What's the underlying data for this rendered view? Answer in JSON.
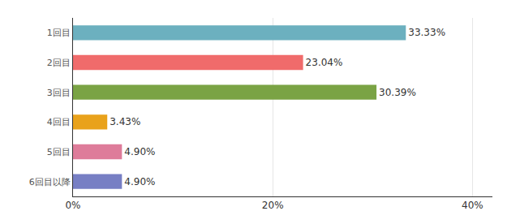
{
  "chart_data": {
    "type": "bar",
    "orientation": "horizontal",
    "categories": [
      "1回目",
      "2回目",
      "3回目",
      "4回目",
      "5回目",
      "6回目以降"
    ],
    "values": [
      33.33,
      23.04,
      30.39,
      3.43,
      4.9,
      4.9
    ],
    "value_labels": [
      "33.33%",
      "23.04%",
      "30.39%",
      "3.43%",
      "4.90%",
      "4.90%"
    ],
    "colors": [
      "#6cb0bf",
      "#f06b6b",
      "#7aa344",
      "#e9a21b",
      "#de7c9a",
      "#777fc4"
    ],
    "data_labels": true,
    "xlim": [
      0,
      42
    ],
    "xticks": [
      {
        "value": 0,
        "label": "0%"
      },
      {
        "value": 20,
        "label": "20%"
      },
      {
        "value": 40,
        "label": "40%"
      }
    ],
    "grid": true
  }
}
